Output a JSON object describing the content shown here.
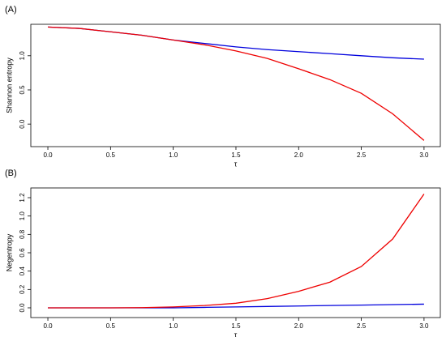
{
  "chart_data": [
    {
      "type": "line",
      "title": "(A)",
      "x_label": "τ",
      "y_label": "Shannon entropy",
      "x": [
        0,
        0.25,
        0.5,
        0.75,
        1.0,
        1.25,
        1.5,
        1.75,
        2.0,
        2.25,
        2.5,
        2.75,
        3.0
      ],
      "series": [
        {
          "color": "#0000dd",
          "values": [
            1.42,
            1.4,
            1.35,
            1.3,
            1.23,
            1.18,
            1.13,
            1.09,
            1.06,
            1.03,
            1.0,
            0.97,
            0.95
          ]
        },
        {
          "color": "#ee0000",
          "values": [
            1.42,
            1.4,
            1.35,
            1.3,
            1.23,
            1.16,
            1.07,
            0.96,
            0.81,
            0.65,
            0.45,
            0.15,
            -0.24
          ]
        }
      ],
      "xlim": [
        -0.136,
        3.13
      ],
      "ylim": [
        -0.33,
        1.46
      ],
      "xticks": [
        {
          "value": 0,
          "label": "0.0"
        },
        0.5,
        {
          "value": 1,
          "label": "1.0"
        },
        1.5,
        {
          "value": 2,
          "label": "2.0"
        },
        2.5,
        {
          "value": 3,
          "label": "3.0"
        }
      ],
      "yticks": [
        {
          "value": 0,
          "label": "0.0"
        },
        0.5,
        {
          "value": 1,
          "label": "1.0"
        }
      ]
    },
    {
      "type": "line",
      "title": "(B)",
      "x_label": "τ",
      "y_label": "Negentropy",
      "x": [
        0,
        0.25,
        0.5,
        0.75,
        1.0,
        1.25,
        1.5,
        1.75,
        2.0,
        2.25,
        2.5,
        2.75,
        3.0
      ],
      "series": [
        {
          "color": "#0000dd",
          "values": [
            0,
            0,
            0,
            0,
            0,
            0.005,
            0.01,
            0.015,
            0.02,
            0.025,
            0.03,
            0.035,
            0.04
          ]
        },
        {
          "color": "#ee0000",
          "values": [
            0,
            0,
            0,
            0.002,
            0.01,
            0.025,
            0.05,
            0.1,
            0.18,
            0.28,
            0.45,
            0.75,
            1.24
          ]
        }
      ],
      "xlim": [
        -0.136,
        3.13
      ],
      "ylim": [
        -0.106,
        1.306
      ],
      "xticks": [
        {
          "value": 0,
          "label": "0.0"
        },
        0.5,
        {
          "value": 1,
          "label": "1.0"
        },
        1.5,
        {
          "value": 2,
          "label": "2.0"
        },
        2.5,
        {
          "value": 3,
          "label": "3.0"
        }
      ],
      "yticks": [
        {
          "value": 0,
          "label": "0.0"
        },
        0.2,
        0.4,
        0.6,
        0.8,
        {
          "value": 1,
          "label": "1.0"
        },
        1.2
      ]
    }
  ]
}
